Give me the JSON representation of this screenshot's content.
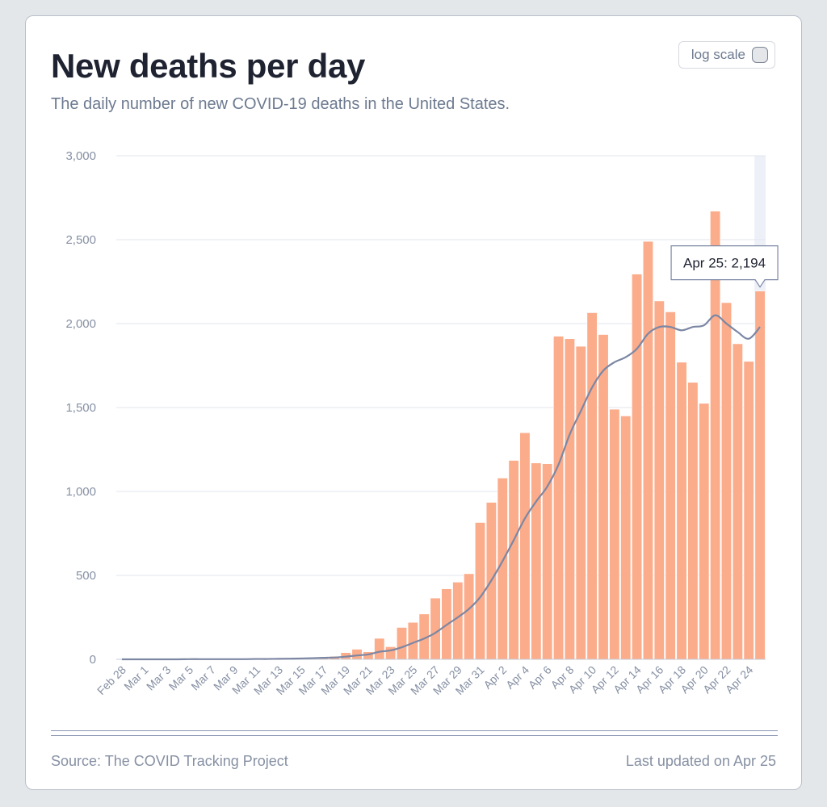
{
  "header": {
    "title": "New deaths per day",
    "subtitle": "The daily number of new COVID-19 deaths in the United States.",
    "log_scale_label": "log scale"
  },
  "footer": {
    "source": "Source: The COVID Tracking Project",
    "updated": "Last updated on Apr 25"
  },
  "colors": {
    "bar": "#fbac8b",
    "bar_stroke": "#ffffff",
    "line": "#7c87a4",
    "grid": "#e2e6ee",
    "axis_text": "#8690a3",
    "highlight": "#eef0f8"
  },
  "chart_data": {
    "type": "bar",
    "title": "New deaths per day",
    "xlabel": "",
    "ylabel": "",
    "ylim": [
      0,
      3000
    ],
    "y_ticks": [
      0,
      500,
      1000,
      1500,
      2000,
      2500,
      3000
    ],
    "y_tick_labels": [
      "0",
      "500",
      "1,000",
      "1,500",
      "2,000",
      "2,500",
      "3,000"
    ],
    "x_tick_labels": [
      "Feb 28",
      "Mar 1",
      "Mar 3",
      "Mar 5",
      "Mar 7",
      "Mar 9",
      "Mar 11",
      "Mar 13",
      "Mar 15",
      "Mar 17",
      "Mar 19",
      "Mar 21",
      "Mar 23",
      "Mar 25",
      "Mar 27",
      "Mar 29",
      "Mar 31",
      "Apr 2",
      "Apr 4",
      "Apr 6",
      "Apr 8",
      "Apr 10",
      "Apr 12",
      "Apr 14",
      "Apr 16",
      "Apr 18",
      "Apr 20",
      "Apr 22",
      "Apr 24"
    ],
    "categories": [
      "Feb 28",
      "Feb 29",
      "Mar 1",
      "Mar 2",
      "Mar 3",
      "Mar 4",
      "Mar 5",
      "Mar 6",
      "Mar 7",
      "Mar 8",
      "Mar 9",
      "Mar 10",
      "Mar 11",
      "Mar 12",
      "Mar 13",
      "Mar 14",
      "Mar 15",
      "Mar 16",
      "Mar 17",
      "Mar 18",
      "Mar 19",
      "Mar 20",
      "Mar 21",
      "Mar 22",
      "Mar 23",
      "Mar 24",
      "Mar 25",
      "Mar 26",
      "Mar 27",
      "Mar 28",
      "Mar 29",
      "Mar 30",
      "Mar 31",
      "Apr 1",
      "Apr 2",
      "Apr 3",
      "Apr 4",
      "Apr 5",
      "Apr 6",
      "Apr 7",
      "Apr 8",
      "Apr 9",
      "Apr 10",
      "Apr 11",
      "Apr 12",
      "Apr 13",
      "Apr 14",
      "Apr 15",
      "Apr 16",
      "Apr 17",
      "Apr 18",
      "Apr 19",
      "Apr 20",
      "Apr 21",
      "Apr 22",
      "Apr 23",
      "Apr 24",
      "Apr 25"
    ],
    "series": [
      {
        "name": "New deaths",
        "type": "bar",
        "values": [
          0,
          0,
          0,
          0,
          0,
          0,
          1,
          1,
          1,
          1,
          1,
          2,
          3,
          4,
          5,
          8,
          10,
          12,
          14,
          18,
          40,
          60,
          45,
          125,
          75,
          190,
          220,
          270,
          365,
          420,
          460,
          510,
          815,
          935,
          1080,
          1185,
          1350,
          1170,
          1165,
          1925,
          1910,
          1865,
          2065,
          1935,
          1490,
          1450,
          2295,
          2490,
          2135,
          2070,
          1770,
          1650,
          1525,
          2670,
          2125,
          1880,
          1775,
          2194
        ]
      },
      {
        "name": "7-day average",
        "type": "line",
        "values": [
          0,
          0,
          0,
          0,
          0,
          0,
          1,
          1,
          1,
          1,
          1,
          1,
          2,
          2,
          3,
          4,
          5,
          7,
          9,
          11,
          16,
          23,
          29,
          45,
          53,
          72,
          98,
          124,
          158,
          205,
          250,
          300,
          370,
          470,
          585,
          710,
          840,
          940,
          1030,
          1160,
          1340,
          1480,
          1620,
          1720,
          1770,
          1800,
          1850,
          1940,
          1980,
          1980,
          1960,
          1980,
          1990,
          2050,
          2000,
          1950,
          1910,
          1980
        ]
      }
    ],
    "tooltip": {
      "category": "Apr 25",
      "value": 2194,
      "label": "Apr 25: 2,194"
    },
    "highlighted_category": "Apr 25"
  }
}
